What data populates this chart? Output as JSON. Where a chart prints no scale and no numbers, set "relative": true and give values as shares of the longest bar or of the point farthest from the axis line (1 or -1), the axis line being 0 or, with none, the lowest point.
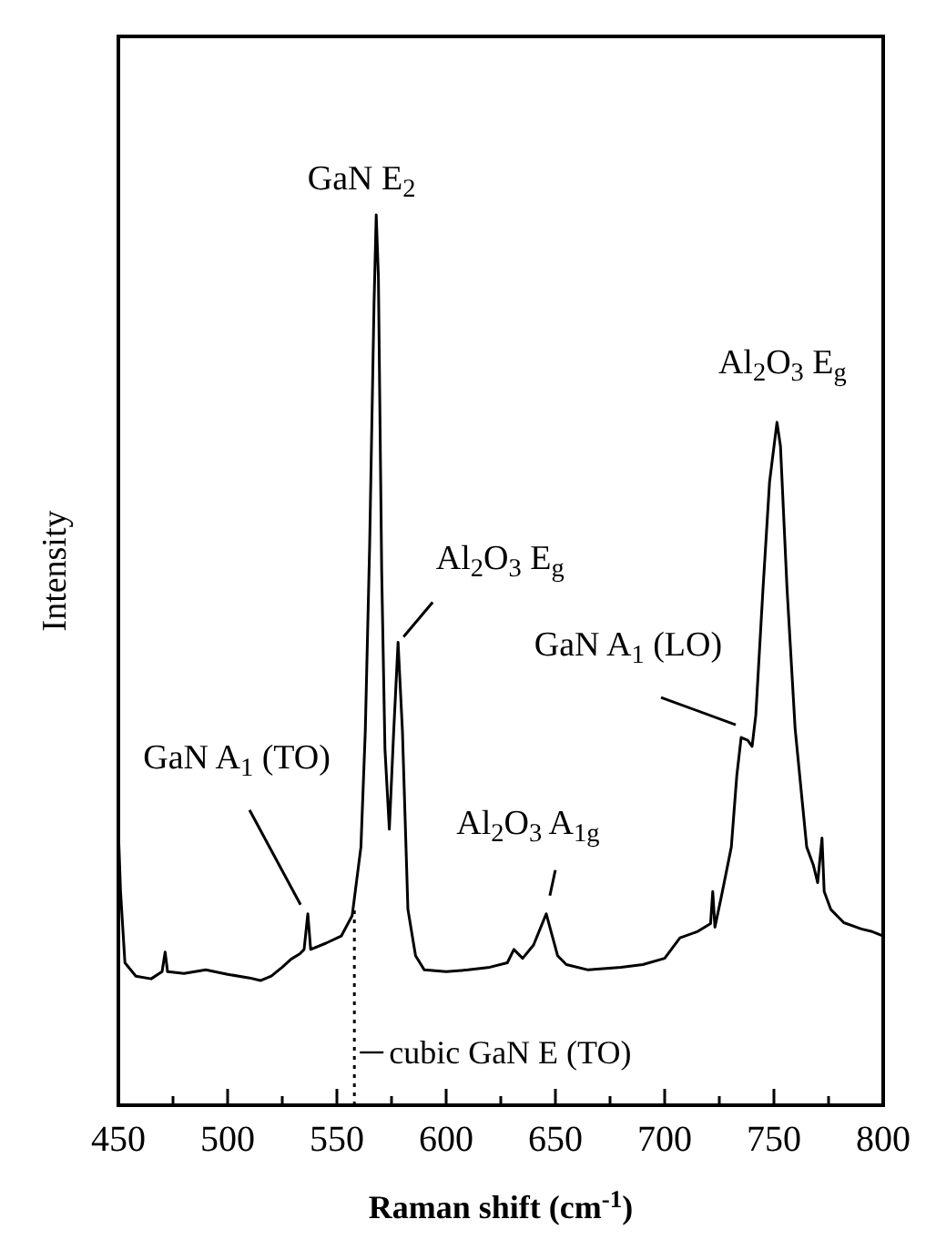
{
  "chart_data": {
    "type": "line",
    "relative": true,
    "xlabel": "Raman shift (cm$^{-1}$)",
    "ylabel": "Intensity",
    "xlim": [
      450,
      800
    ],
    "xticks": [
      450,
      {
        "value": 475,
        "label": null
      },
      500,
      {
        "value": 525,
        "label": null
      },
      550,
      {
        "value": 575,
        "label": null
      },
      600,
      {
        "value": 625,
        "label": null
      },
      650,
      {
        "value": 675,
        "label": null
      },
      700,
      {
        "value": 725,
        "label": null
      },
      750,
      {
        "value": 775,
        "label": null
      },
      800
    ],
    "color": "#000000",
    "x": [
      450,
      451,
      453,
      458,
      465,
      470,
      471.4,
      472.5,
      480,
      490,
      500,
      510,
      515,
      520,
      525,
      529,
      533,
      535,
      536.7,
      538,
      545,
      552,
      557,
      561,
      563,
      565,
      567,
      568,
      569,
      570.5,
      572,
      574,
      576,
      578,
      580,
      582.5,
      586,
      590,
      600,
      610,
      620,
      628,
      631,
      635,
      640,
      645.8,
      651,
      655,
      665,
      680,
      690,
      700,
      707,
      715,
      721,
      722,
      723,
      726,
      730.5,
      733,
      735,
      738,
      740,
      741.7,
      745,
      748,
      751.4,
      753,
      756,
      759.7,
      763,
      765,
      768,
      770,
      772,
      773,
      776,
      782,
      790,
      795,
      800
    ],
    "values": [
      0.31,
      0.24,
      0.16,
      0.145,
      0.142,
      0.15,
      0.172,
      0.15,
      0.148,
      0.152,
      0.147,
      0.143,
      0.14,
      0.145,
      0.155,
      0.164,
      0.17,
      0.175,
      0.215,
      0.175,
      0.182,
      0.19,
      0.213,
      0.29,
      0.42,
      0.63,
      0.9,
      1.0,
      0.93,
      0.6,
      0.4,
      0.31,
      0.42,
      0.52,
      0.42,
      0.22,
      0.168,
      0.152,
      0.15,
      0.152,
      0.155,
      0.16,
      0.175,
      0.165,
      0.18,
      0.215,
      0.168,
      0.158,
      0.152,
      0.155,
      0.158,
      0.165,
      0.188,
      0.195,
      0.204,
      0.24,
      0.2,
      0.235,
      0.29,
      0.37,
      0.413,
      0.41,
      0.403,
      0.438,
      0.58,
      0.7,
      0.767,
      0.74,
      0.58,
      0.423,
      0.34,
      0.29,
      0.27,
      0.25,
      0.3,
      0.24,
      0.22,
      0.205,
      0.198,
      0.195,
      0.19
    ],
    "annotations": [
      {
        "text": "GaN E$_{2}$",
        "x": 568,
        "y": 1.0
      },
      {
        "text": "GaN A$_{1}$ (TO)",
        "x": 536.7,
        "y": 0.215
      },
      {
        "text": "Al$_{2}$O$_{3}$ E$_{g}$",
        "x": 578,
        "y": 0.52
      },
      {
        "text": "Al$_{2}$O$_{3}$ A$_{1g}$",
        "x": 645.8,
        "y": 0.215
      },
      {
        "text": "GaN A$_{1}$ (LO)",
        "x": 735,
        "y": 0.413
      },
      {
        "text": "Al$_{2}$O$_{3}$ E$_{g}$",
        "x": 751.4,
        "y": 0.767
      }
    ],
    "ref_lines": [
      {
        "axis": "x",
        "value": 558,
        "label": "cubic GaN E (TO)",
        "line_style": "dotted"
      }
    ]
  }
}
